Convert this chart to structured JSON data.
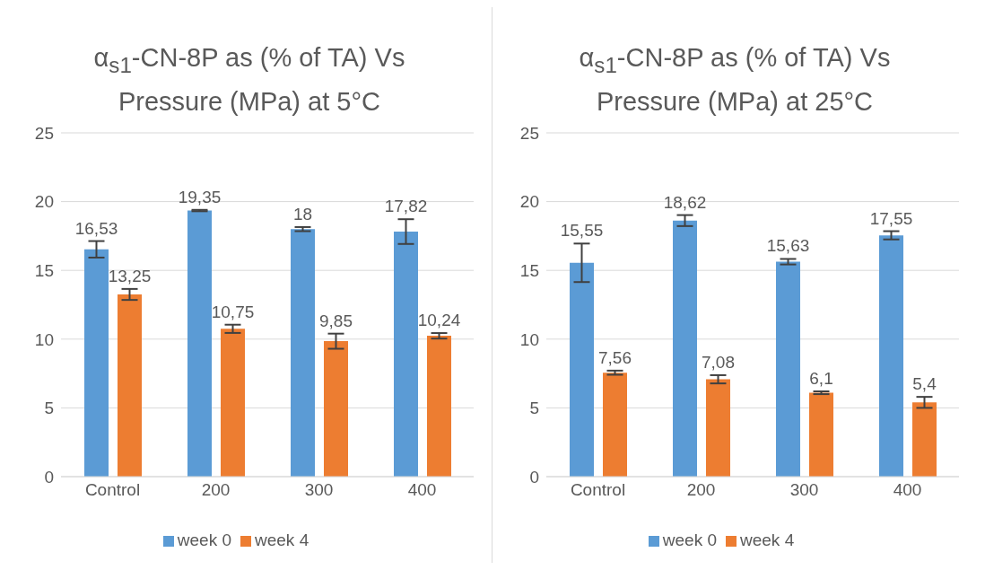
{
  "chart_data": [
    {
      "type": "bar",
      "title": "α$_{s1}$-CN-8P as (% of TA) Vs Pressure (MPa) at 5°C",
      "categories": [
        "Control",
        "200",
        "300",
        "400"
      ],
      "ylim": [
        0,
        25
      ],
      "yticks": [
        0,
        5,
        10,
        15,
        20,
        25
      ],
      "grid": "y",
      "legend": "bottom",
      "series": [
        {
          "name": "week 0",
          "color": "#5b9bd5",
          "values": [
            16.53,
            19.35,
            18,
            17.82
          ],
          "errors": [
            0.6,
            0.05,
            0.15,
            0.9
          ],
          "value_labels": [
            "16,53",
            "19,35",
            "18",
            "17,82"
          ]
        },
        {
          "name": "week 4",
          "color": "#ed7d31",
          "values": [
            13.25,
            10.75,
            9.85,
            10.24
          ],
          "errors": [
            0.4,
            0.3,
            0.55,
            0.2
          ],
          "value_labels": [
            "13,25",
            "10,75",
            "9,85",
            "10,24"
          ]
        }
      ]
    },
    {
      "type": "bar",
      "title": "α$_{s1}$-CN-8P as (% of TA) Vs Pressure (MPa) at 25°C",
      "categories": [
        "Control",
        "200",
        "300",
        "400"
      ],
      "ylim": [
        0,
        25
      ],
      "yticks": [
        0,
        5,
        10,
        15,
        20,
        25
      ],
      "grid": "y",
      "legend": "bottom",
      "series": [
        {
          "name": "week 0",
          "color": "#5b9bd5",
          "values": [
            15.55,
            18.62,
            15.63,
            17.55
          ],
          "errors": [
            1.4,
            0.4,
            0.2,
            0.3
          ],
          "value_labels": [
            "15,55",
            "18,62",
            "15,63",
            "17,55"
          ]
        },
        {
          "name": "week 4",
          "color": "#ed7d31",
          "values": [
            7.56,
            7.08,
            6.1,
            5.4
          ],
          "errors": [
            0.15,
            0.3,
            0.1,
            0.4
          ],
          "value_labels": [
            "7,56",
            "7,08",
            "6,1",
            "5,4"
          ]
        }
      ]
    }
  ]
}
